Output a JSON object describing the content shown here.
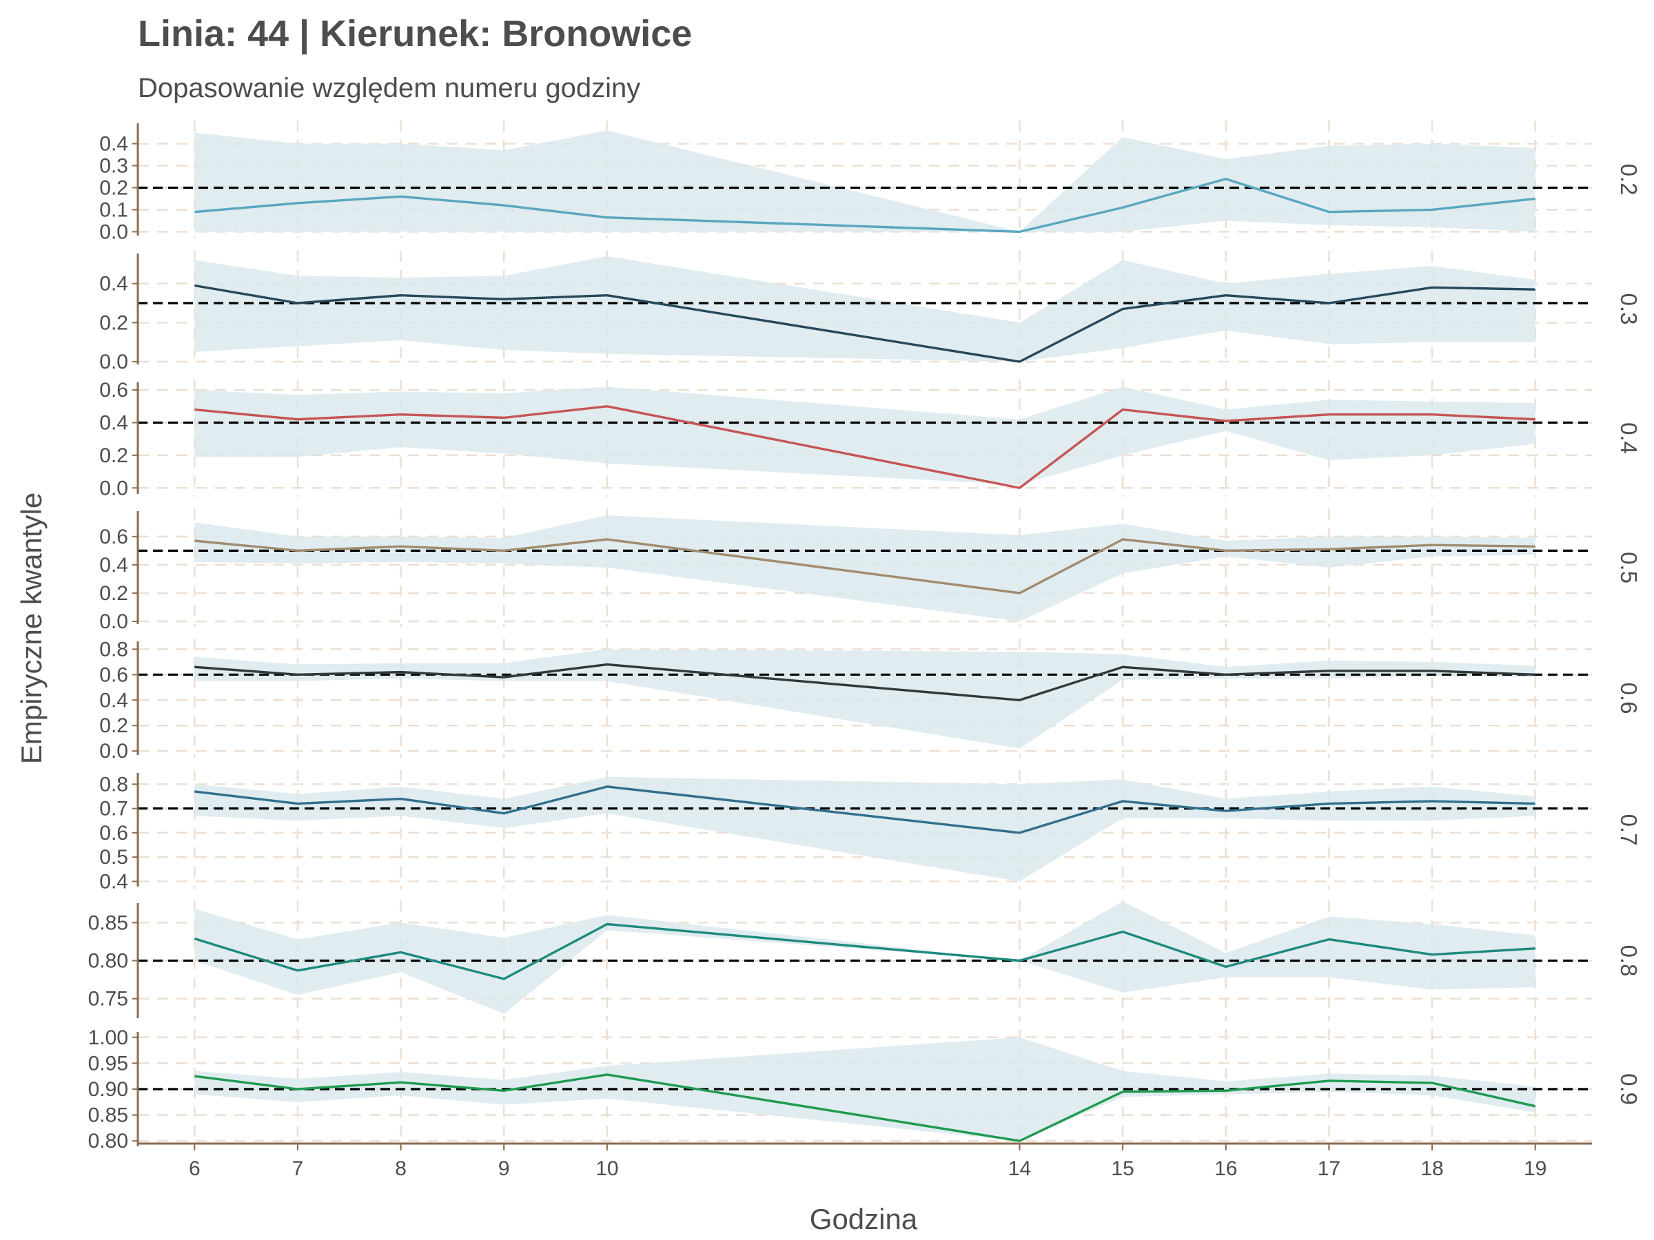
{
  "chart_data": {
    "type": "line",
    "title": "Linia: 44 | Kierunek: Bronowice",
    "subtitle": "Dopasowanie względem numeru godziny",
    "xlabel": "Godzina",
    "ylabel": "Empiryczne kwantyle",
    "x": [
      6,
      7,
      8,
      9,
      10,
      14,
      15,
      16,
      17,
      18,
      19
    ],
    "xlim": [
      5.45,
      19.55
    ],
    "grid": true,
    "colors": {
      "band": "#dbe9ec",
      "grid": "#eddfd2",
      "axis": "#8b6b4e",
      "reference": "#000000",
      "text": "#4d4d4d"
    },
    "panels": [
      {
        "name": "0.2",
        "reference": 0.2,
        "color": "#5aa6c0",
        "ylim": [
          -0.005,
          0.48
        ],
        "ticks": [
          "0.0",
          "0.1",
          "0.2",
          "0.3",
          "0.4"
        ],
        "values": [
          0.09,
          0.13,
          0.16,
          0.12,
          0.065,
          0.0,
          0.11,
          0.24,
          0.09,
          0.1,
          0.15
        ],
        "lower": [
          0.0,
          0.0,
          0.0,
          0.0,
          0.0,
          0.0,
          0.0,
          0.05,
          0.03,
          0.02,
          0.0
        ],
        "upper": [
          0.45,
          0.4,
          0.4,
          0.37,
          0.46,
          0.0,
          0.43,
          0.33,
          0.39,
          0.4,
          0.38
        ]
      },
      {
        "name": "0.3",
        "reference": 0.3,
        "color": "#26485a",
        "ylim": [
          0,
          0.54
        ],
        "ticks": [
          "0.0",
          "0.2",
          "0.4"
        ],
        "values": [
          0.39,
          0.3,
          0.34,
          0.32,
          0.34,
          0.0,
          0.27,
          0.34,
          0.3,
          0.38,
          0.37
        ],
        "lower": [
          0.05,
          0.08,
          0.11,
          0.06,
          0.04,
          0.0,
          0.07,
          0.16,
          0.09,
          0.1,
          0.1
        ],
        "upper": [
          0.52,
          0.44,
          0.43,
          0.44,
          0.54,
          0.2,
          0.52,
          0.4,
          0.45,
          0.49,
          0.42
        ]
      },
      {
        "name": "0.4",
        "reference": 0.4,
        "color": "#c65454",
        "ylim": [
          -0.02,
          0.63
        ],
        "ticks": [
          "0.0",
          "0.2",
          "0.4",
          "0.6"
        ],
        "values": [
          0.48,
          0.42,
          0.45,
          0.43,
          0.5,
          0.0,
          0.48,
          0.41,
          0.45,
          0.45,
          0.42
        ],
        "lower": [
          0.19,
          0.19,
          0.25,
          0.21,
          0.15,
          0.02,
          0.2,
          0.35,
          0.17,
          0.2,
          0.27
        ],
        "upper": [
          0.6,
          0.57,
          0.59,
          0.58,
          0.62,
          0.42,
          0.62,
          0.48,
          0.54,
          0.53,
          0.52
        ]
      },
      {
        "name": "0.5",
        "reference": 0.5,
        "color": "#a08c6e",
        "ylim": [
          0,
          0.76
        ],
        "ticks": [
          "0.0",
          "0.2",
          "0.4",
          "0.6"
        ],
        "values": [
          0.57,
          0.5,
          0.53,
          0.5,
          0.58,
          0.2,
          0.58,
          0.5,
          0.51,
          0.54,
          0.53
        ],
        "lower": [
          0.42,
          0.41,
          0.42,
          0.41,
          0.38,
          0.0,
          0.34,
          0.46,
          0.38,
          0.46,
          0.47
        ],
        "upper": [
          0.7,
          0.6,
          0.6,
          0.59,
          0.75,
          0.61,
          0.69,
          0.57,
          0.6,
          0.6,
          0.59
        ]
      },
      {
        "name": "0.6",
        "reference": 0.6,
        "color": "#33393b",
        "ylim": [
          -0.01,
          0.84
        ],
        "ticks": [
          "0.0",
          "0.2",
          "0.4",
          "0.6",
          "0.8"
        ],
        "values": [
          0.66,
          0.6,
          0.62,
          0.58,
          0.68,
          0.4,
          0.66,
          0.6,
          0.63,
          0.63,
          0.6
        ],
        "lower": [
          0.55,
          0.55,
          0.57,
          0.55,
          0.55,
          0.02,
          0.56,
          0.57,
          0.57,
          0.59,
          0.58
        ],
        "upper": [
          0.74,
          0.68,
          0.69,
          0.69,
          0.8,
          0.78,
          0.76,
          0.66,
          0.71,
          0.7,
          0.67
        ]
      },
      {
        "name": "0.7",
        "reference": 0.7,
        "color": "#316f8c",
        "ylim": [
          0.39,
          0.835
        ],
        "ticks": [
          "0.4",
          "0.5",
          "0.6",
          "0.7",
          "0.8"
        ],
        "values": [
          0.77,
          0.72,
          0.74,
          0.68,
          0.79,
          0.6,
          0.73,
          0.69,
          0.72,
          0.73,
          0.72
        ],
        "lower": [
          0.67,
          0.65,
          0.67,
          0.62,
          0.68,
          0.4,
          0.66,
          0.66,
          0.65,
          0.65,
          0.67
        ],
        "upper": [
          0.8,
          0.76,
          0.79,
          0.74,
          0.83,
          0.8,
          0.82,
          0.74,
          0.77,
          0.79,
          0.75
        ]
      },
      {
        "name": "0.8",
        "reference": 0.8,
        "color": "#1e8a7e",
        "ylim": [
          0.728,
          0.872
        ],
        "ticks": [
          "0.75",
          "0.80",
          "0.85"
        ],
        "values": [
          0.829,
          0.787,
          0.811,
          0.776,
          0.848,
          0.8,
          0.838,
          0.792,
          0.828,
          0.808,
          0.816
        ],
        "lower": [
          0.8,
          0.755,
          0.785,
          0.73,
          0.84,
          0.8,
          0.758,
          0.778,
          0.778,
          0.762,
          0.765
        ],
        "upper": [
          0.868,
          0.828,
          0.85,
          0.83,
          0.86,
          0.8,
          0.878,
          0.81,
          0.858,
          0.848,
          0.833
        ]
      },
      {
        "name": "0.9",
        "reference": 0.9,
        "color": "#1e9a50",
        "ylim": [
          0.795,
          1.005
        ],
        "ticks": [
          "0.80",
          "0.85",
          "0.90",
          "0.95",
          "1.00"
        ],
        "values": [
          0.925,
          0.9,
          0.913,
          0.897,
          0.928,
          0.8,
          0.895,
          0.897,
          0.916,
          0.912,
          0.867
        ],
        "lower": [
          0.89,
          0.875,
          0.888,
          0.87,
          0.882,
          0.8,
          0.885,
          0.89,
          0.895,
          0.888,
          0.855
        ],
        "upper": [
          0.935,
          0.92,
          0.933,
          0.918,
          0.945,
          1.0,
          0.935,
          0.915,
          0.93,
          0.926,
          0.905
        ]
      }
    ]
  }
}
